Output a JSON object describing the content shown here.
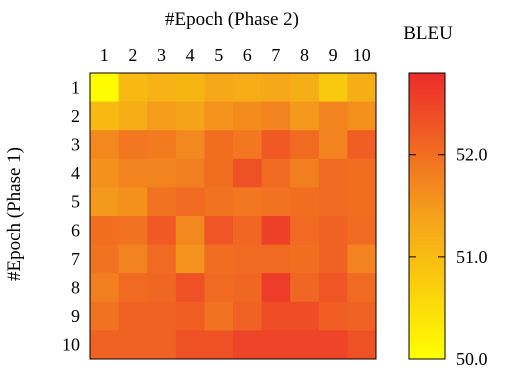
{
  "chart_data": {
    "type": "heatmap",
    "title": "#Epoch (Phase 2)",
    "xlabel": "#Epoch (Phase 2)",
    "ylabel": "#Epoch (Phase 1)",
    "x_categories": [
      "1",
      "2",
      "3",
      "4",
      "5",
      "6",
      "7",
      "8",
      "9",
      "10"
    ],
    "y_categories": [
      "1",
      "2",
      "3",
      "4",
      "5",
      "6",
      "7",
      "8",
      "9",
      "10"
    ],
    "colorbar": {
      "title": "BLEU",
      "range": [
        50.0,
        52.8
      ],
      "ticks": [
        50.0,
        51.0,
        52.0
      ],
      "tick_labels": [
        "50.0",
        "51.0",
        "52.0"
      ],
      "colors": {
        "low": "#ffff00",
        "mid": "#f5a11a",
        "high": "#ec2b2b"
      }
    },
    "values": [
      [
        50.05,
        51.05,
        51.15,
        51.1,
        51.3,
        51.25,
        51.3,
        51.2,
        50.8,
        51.2
      ],
      [
        51.05,
        51.2,
        51.45,
        51.35,
        51.55,
        51.65,
        51.75,
        51.5,
        51.75,
        51.6
      ],
      [
        51.7,
        51.9,
        51.85,
        51.7,
        52.0,
        51.9,
        52.25,
        52.05,
        51.75,
        52.2
      ],
      [
        51.6,
        51.75,
        51.75,
        51.8,
        52.0,
        52.35,
        52.05,
        51.8,
        52.05,
        52.0
      ],
      [
        51.5,
        51.6,
        51.95,
        52.05,
        51.95,
        51.9,
        51.95,
        52.0,
        52.05,
        52.0
      ],
      [
        52.0,
        51.95,
        52.25,
        51.7,
        52.3,
        52.1,
        52.55,
        52.05,
        52.15,
        52.05
      ],
      [
        51.95,
        51.75,
        52.05,
        51.55,
        52.0,
        52.05,
        52.05,
        52.0,
        52.15,
        51.75
      ],
      [
        51.8,
        52.05,
        52.1,
        52.35,
        52.05,
        52.1,
        52.6,
        52.1,
        52.3,
        52.05
      ],
      [
        51.95,
        52.15,
        52.15,
        52.2,
        51.95,
        52.15,
        52.4,
        52.4,
        52.2,
        52.15
      ],
      [
        52.15,
        52.15,
        52.15,
        52.35,
        52.35,
        52.5,
        52.5,
        52.5,
        52.5,
        52.35
      ]
    ]
  }
}
